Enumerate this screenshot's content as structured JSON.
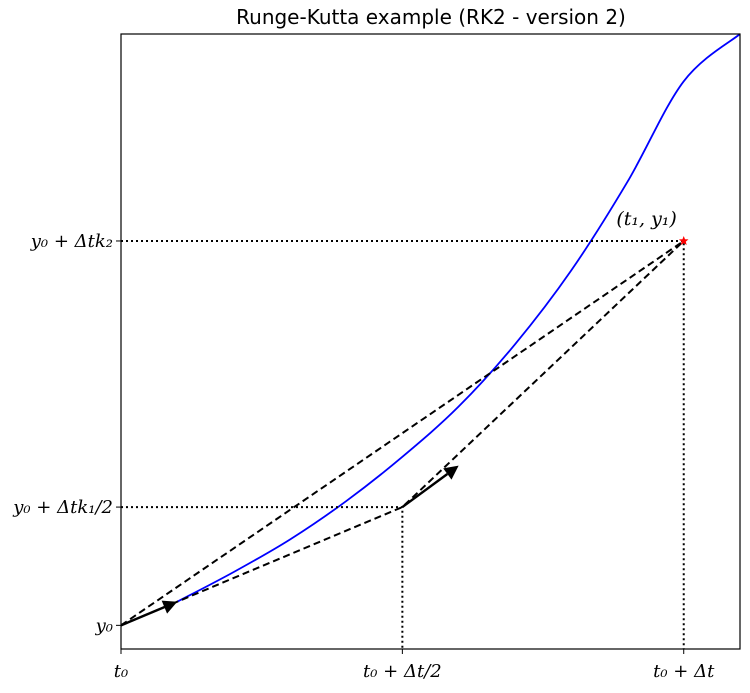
{
  "chart_data": {
    "type": "line",
    "title": "Runge-Kutta example (RK2 - version 2)",
    "xlim": [
      0,
      1.1
    ],
    "ylim": [
      -0.08,
      2.0
    ],
    "grid": false,
    "x_ticks": [
      {
        "value": 0,
        "label": "t₀"
      },
      {
        "value": 0.5,
        "label": "t₀ + Δt/2"
      },
      {
        "value": 1.0,
        "label": "t₀ + Δt"
      }
    ],
    "y_ticks": [
      {
        "value": 0,
        "label": "y₀"
      },
      {
        "value": 0.4,
        "label": "y₀ + Δtk₁/2"
      },
      {
        "value": 1.3,
        "label": "y₀ + Δtk₂"
      }
    ],
    "series": [
      {
        "kind": "curve",
        "color": "#0000ff",
        "x": [
          0.1,
          0.2,
          0.3,
          0.4,
          0.5,
          0.6,
          0.7,
          0.8,
          0.9,
          1.0,
          1.1
        ],
        "y": [
          0.08,
          0.18,
          0.29,
          0.42,
          0.57,
          0.74,
          0.95,
          1.2,
          1.5,
          1.84,
          2.0
        ]
      },
      {
        "kind": "dashed",
        "color": "#000000",
        "x": [
          0,
          1.0
        ],
        "y": [
          0,
          1.3
        ]
      },
      {
        "kind": "dashed",
        "color": "#000000",
        "x": [
          0,
          0.5,
          1.0
        ],
        "y": [
          0,
          0.4,
          1.3
        ]
      },
      {
        "kind": "dotted",
        "color": "#000000",
        "x": [
          0,
          0.5,
          0.5
        ],
        "y": [
          0.4,
          0.4,
          -0.08
        ]
      },
      {
        "kind": "dotted",
        "color": "#000000",
        "x": [
          0,
          1.0,
          1.0
        ],
        "y": [
          1.3,
          1.3,
          -0.08
        ]
      }
    ],
    "arrows": [
      {
        "color": "#000000",
        "x0": 0,
        "y0": 0,
        "x1": 0.1,
        "y1": 0.08
      },
      {
        "color": "#000000",
        "x0": 0.5,
        "y0": 0.4,
        "x1": 0.6,
        "y1": 0.54
      }
    ],
    "point": {
      "x": 1.0,
      "y": 1.3,
      "color": "#ff0000",
      "marker": "star"
    },
    "annotation": {
      "text": "(t₁, y₁)",
      "x": 0.97,
      "y": 1.36,
      "color": "#ff0000"
    }
  }
}
